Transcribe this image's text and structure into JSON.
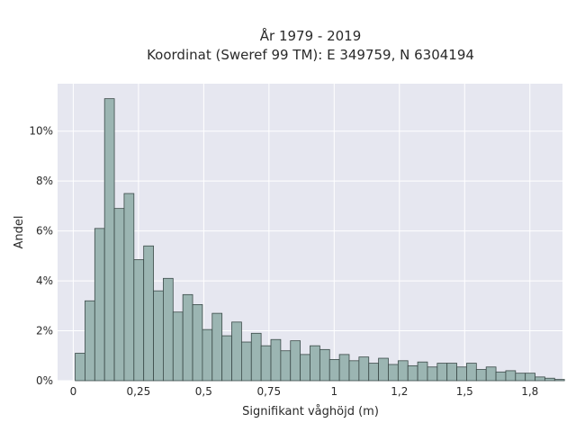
{
  "chart_data": {
    "type": "bar",
    "title": "År 1979 - 2019",
    "subtitle": "Koordinat (Sweref 99 TM): E 349759, N 6304194",
    "xlabel": "Signifikant våghöjd (m)",
    "ylabel": "Andel",
    "xlim": [
      -0.06,
      1.875
    ],
    "ylim": [
      0,
      11.9
    ],
    "x_ticks": [
      {
        "value": 0,
        "label": "0"
      },
      {
        "value": 0.25,
        "label": "0,25"
      },
      {
        "value": 0.5,
        "label": "0,5"
      },
      {
        "value": 0.75,
        "label": "0,75"
      },
      {
        "value": 1,
        "label": "1"
      },
      {
        "value": 1.25,
        "label": "1,2"
      },
      {
        "value": 1.5,
        "label": "1,5"
      },
      {
        "value": 1.75,
        "label": "1,8"
      }
    ],
    "y_ticks": [
      {
        "value": 0,
        "label": "0%"
      },
      {
        "value": 2,
        "label": "2%"
      },
      {
        "value": 4,
        "label": "4%"
      },
      {
        "value": 6,
        "label": "6%"
      },
      {
        "value": 8,
        "label": "8%"
      },
      {
        "value": 10,
        "label": "10%"
      }
    ],
    "grid": true,
    "bin_start": 0.0075,
    "bin_width": 0.0375,
    "values": [
      1.1,
      3.2,
      6.1,
      11.3,
      6.9,
      7.5,
      4.85,
      5.4,
      3.6,
      4.1,
      2.75,
      3.45,
      3.05,
      2.05,
      2.7,
      1.8,
      2.35,
      1.55,
      1.9,
      1.4,
      1.65,
      1.2,
      1.6,
      1.05,
      1.4,
      1.25,
      0.85,
      1.05,
      0.8,
      0.95,
      0.7,
      0.9,
      0.65,
      0.8,
      0.6,
      0.75,
      0.55,
      0.7,
      0.7,
      0.55,
      0.7,
      0.45,
      0.55,
      0.35,
      0.4,
      0.3,
      0.3,
      0.15,
      0.1,
      0.05
    ],
    "colors": {
      "bar_fill": "#9bb5b2",
      "bar_stroke": "#3b4a48",
      "plot_bg": "#e6e7f0",
      "grid": "#ffffff"
    }
  }
}
